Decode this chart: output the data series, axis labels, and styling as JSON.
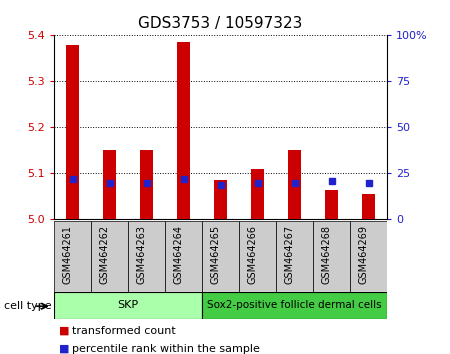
{
  "title": "GDS3753 / 10597323",
  "samples": [
    "GSM464261",
    "GSM464262",
    "GSM464263",
    "GSM464264",
    "GSM464265",
    "GSM464266",
    "GSM464267",
    "GSM464268",
    "GSM464269"
  ],
  "transformed_counts": [
    5.38,
    5.15,
    5.15,
    5.385,
    5.085,
    5.11,
    5.15,
    5.065,
    5.055
  ],
  "percentile_ranks": [
    22,
    20,
    20,
    22,
    19,
    20,
    20,
    21,
    20
  ],
  "ylim_left": [
    5.0,
    5.4
  ],
  "ylim_right": [
    0,
    100
  ],
  "yticks_left": [
    5.0,
    5.1,
    5.2,
    5.3,
    5.4
  ],
  "yticks_right": [
    0,
    25,
    50,
    75,
    100
  ],
  "ytick_labels_right": [
    "0",
    "25",
    "50",
    "75",
    "100%"
  ],
  "bar_color": "#cc0000",
  "dot_color": "#2222cc",
  "bar_width": 0.35,
  "skp_color": "#aaffaa",
  "sox2_color": "#44cc44",
  "cell_type_label": "cell type",
  "legend_items": [
    {
      "label": "transformed count",
      "color": "#cc0000"
    },
    {
      "label": "percentile rank within the sample",
      "color": "#2222cc"
    }
  ],
  "grid_color": "#000000",
  "background_color": "#ffffff",
  "plot_bg": "#ffffff",
  "axis_color_left": "#cc0000",
  "axis_color_right": "#2222cc",
  "col_bg_color": "#cccccc",
  "title_fontsize": 11,
  "tick_fontsize": 8,
  "sample_fontsize": 7
}
